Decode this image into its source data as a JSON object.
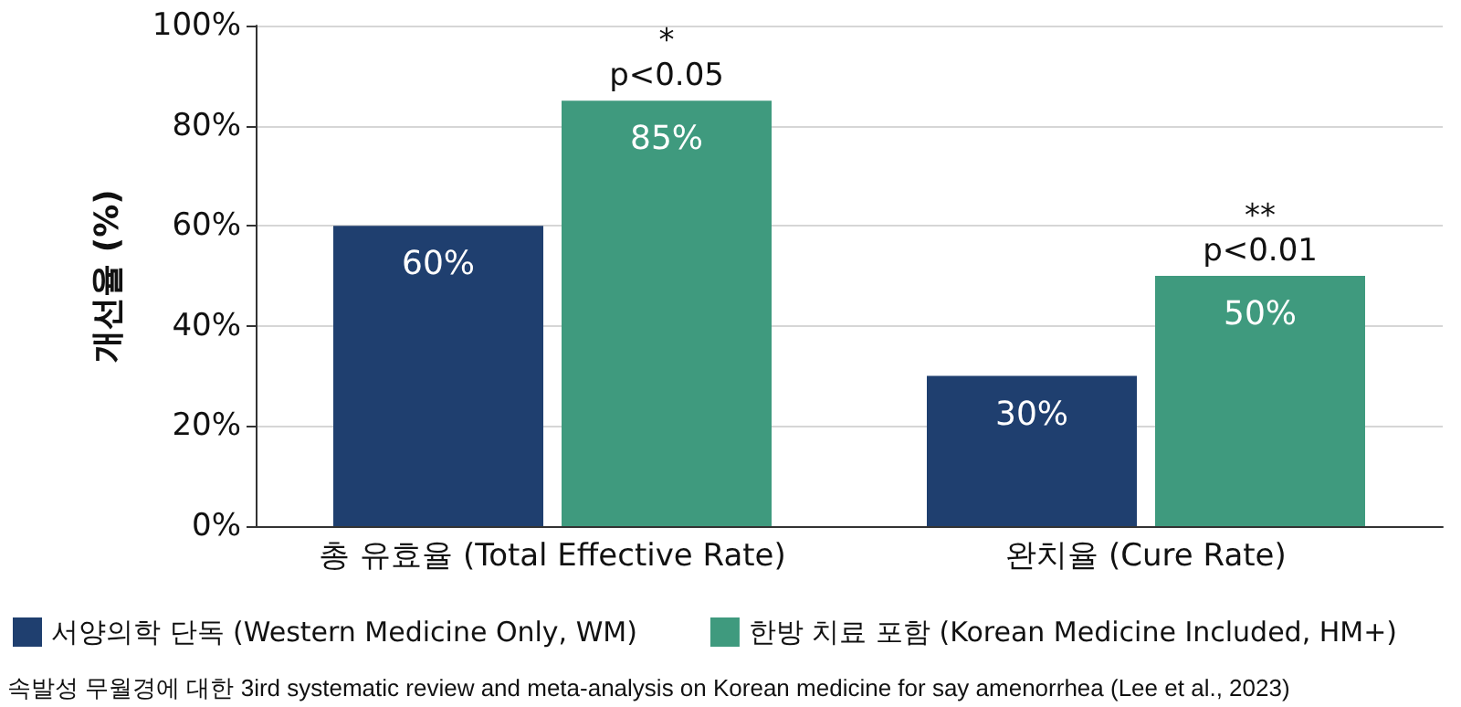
{
  "chart_data": {
    "type": "bar",
    "ylabel": "개선율 (%)",
    "categories": [
      "총 유효율 (Total Effective Rate)",
      "완치율 (Cure Rate)"
    ],
    "series": [
      {
        "name": "서양의학 단독 (Western Medicine Only, WM)",
        "color": "#1f3f6f",
        "values": [
          60,
          30
        ],
        "value_labels": [
          "60%",
          "30%"
        ]
      },
      {
        "name": "한방 치료 포함 (Korean Medicine Included, HM+)",
        "color": "#3f9a7e",
        "values": [
          85,
          50
        ],
        "value_labels": [
          "85%",
          "50%"
        ]
      }
    ],
    "ylim": [
      0,
      100
    ],
    "yticks": [
      {
        "value": 0,
        "label": "0%"
      },
      {
        "value": 20,
        "label": "20%"
      },
      {
        "value": 40,
        "label": "40%"
      },
      {
        "value": 60,
        "label": "60%"
      },
      {
        "value": 80,
        "label": "80%"
      },
      {
        "value": 100,
        "label": "100%"
      }
    ],
    "grid": "y",
    "legend": "bottom",
    "annotations": [
      {
        "text": "*\np<0.05",
        "x": "총 유효율 (Total Effective Rate)",
        "y": 85
      },
      {
        "text": "**\np<0.01",
        "x": "완치율 (Cure Rate)",
        "y": 50
      },
      "속발성 무월경에 대한 3ird systematic review and meta-analysis on Korean medicine for say amenorrhea (Lee et al., 2023)"
    ]
  }
}
